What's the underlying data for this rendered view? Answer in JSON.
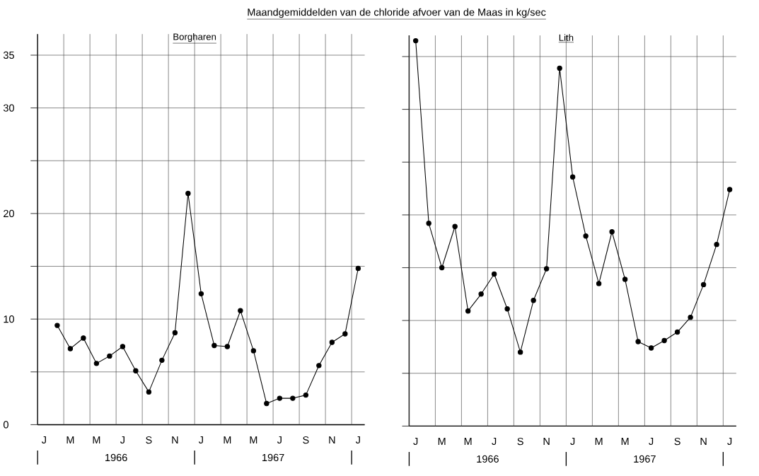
{
  "chart_data": [
    {
      "type": "line",
      "title": "Maandgemiddelden van de chloride afvoer van de Maas in kg/sec",
      "subtitle": "Borgharen",
      "categories": [
        "J",
        null,
        "M",
        null,
        "M",
        null,
        "J",
        null,
        "S",
        null,
        "N",
        null,
        "J",
        null,
        "M",
        null,
        "M",
        null,
        "J",
        null,
        "S",
        null,
        "N",
        null,
        "J"
      ],
      "series": [
        {
          "color": "#000000",
          "values": [
            null,
            9.4,
            7.2,
            8.2,
            5.8,
            6.5,
            7.4,
            5.1,
            3.1,
            6.1,
            8.7,
            21.9,
            12.4,
            7.5,
            7.4,
            10.8,
            7.0,
            2.0,
            2.5,
            2.5,
            2.8,
            5.6,
            7.8,
            8.6,
            14.8
          ]
        }
      ],
      "ylim": [
        0,
        37
      ],
      "yticks": [
        0,
        {
          "value": 5,
          "label": null
        },
        10,
        {
          "value": 15,
          "label": null
        },
        20,
        {
          "value": 25,
          "label": null
        },
        30,
        35
      ],
      "annotations": [
        "1966",
        "1967"
      ],
      "grid": true,
      "marker": "circle",
      "line_style": "solid"
    },
    {
      "type": "line",
      "title": "Lith",
      "categories": [
        "J",
        null,
        "M",
        null,
        "M",
        null,
        "J",
        null,
        "S",
        null,
        "N",
        null,
        "J",
        null,
        "M",
        null,
        "M",
        null,
        "J",
        null,
        "S",
        null,
        "N",
        null,
        "J"
      ],
      "series": [
        {
          "color": "#000000",
          "values": [
            36.5,
            19.2,
            15.0,
            18.9,
            10.9,
            12.5,
            14.4,
            11.1,
            7.0,
            11.9,
            14.9,
            33.9,
            23.6,
            18.0,
            13.5,
            18.4,
            13.9,
            8.0,
            7.4,
            8.1,
            8.9,
            10.3,
            13.4,
            17.2,
            22.4
          ]
        }
      ],
      "ylim": [
        0,
        37
      ],
      "yticks": [
        {
          "value": 0,
          "label": null
        },
        {
          "value": 5,
          "label": null
        },
        {
          "value": 10,
          "label": null
        },
        {
          "value": 15,
          "label": null
        },
        {
          "value": 20,
          "label": null
        },
        {
          "value": 25,
          "label": null
        },
        {
          "value": 30,
          "label": null
        },
        {
          "value": 35,
          "label": null
        }
      ],
      "tick_labels": "x",
      "annotations": [
        "1966",
        "1967"
      ],
      "grid": true,
      "marker": "circle",
      "line_style": "solid"
    }
  ]
}
